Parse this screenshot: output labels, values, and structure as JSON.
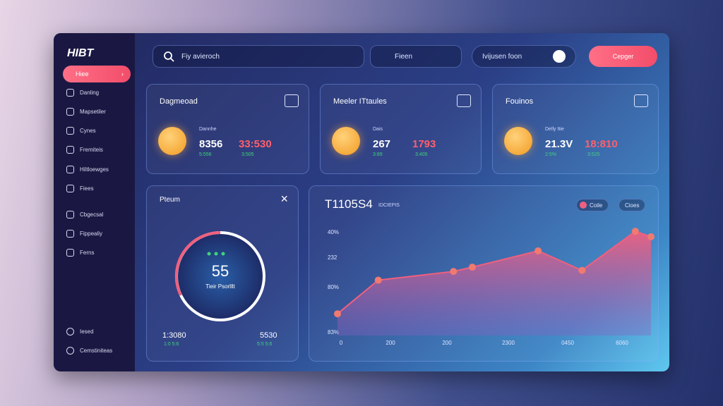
{
  "sidebar": {
    "logo": "HIBT",
    "active": "Hiee",
    "nav": [
      "Danling",
      "Mapsetiler",
      "Cynes",
      "Fremiteis",
      "Hiltloewges",
      "Fiees",
      "Cbgecsal",
      "Fippealiy",
      "Ferns"
    ],
    "footer": [
      "Iesed",
      "Cemstiniteas"
    ]
  },
  "topbar": {
    "search": "Fiy avieroch",
    "pill_1": "Fieen",
    "pill_2": "Ivijusen foon",
    "button": "Cepger"
  },
  "cards": [
    {
      "title": "Dagmeoad",
      "label": "Dannhe",
      "value": "8356",
      "value_2": "33:530",
      "sub": "5:556",
      "sub_2": "3:505"
    },
    {
      "title": "Meeler ITtaules",
      "label": "Dais",
      "value": "267",
      "value_2": "1793",
      "sub": "3:89",
      "sub_2": "3:405"
    },
    {
      "title": "Fouinos",
      "label": "Delly ttie",
      "value": "21.3V",
      "value_2": "18:810",
      "sub": "2:5%",
      "sub_2": "3:525"
    }
  ],
  "gauge_panel": {
    "title": "Pteum",
    "value": "55",
    "caption": "Tieir Psorlllt",
    "left": "1:3080",
    "left_sub": "1:0 5:6",
    "right": "5530",
    "right_sub": "5:5 5:6"
  },
  "chart_panel": {
    "title": "T1105S4",
    "subtitle": "IDCIEPIS",
    "legend": [
      "Coile",
      "Cioes"
    ],
    "y_labels": [
      "40%",
      "232",
      "80%",
      "83%"
    ],
    "x_labels": [
      "0",
      "200",
      "200",
      "2300",
      "0450",
      "6060"
    ],
    "x": [
      0,
      13,
      37,
      43,
      64,
      78,
      95,
      100
    ],
    "values": [
      20,
      51,
      59,
      63,
      78,
      60,
      96,
      91
    ],
    "xlim": [
      0,
      100
    ],
    "ylim": [
      0,
      100
    ],
    "color": "#f0607e"
  }
}
